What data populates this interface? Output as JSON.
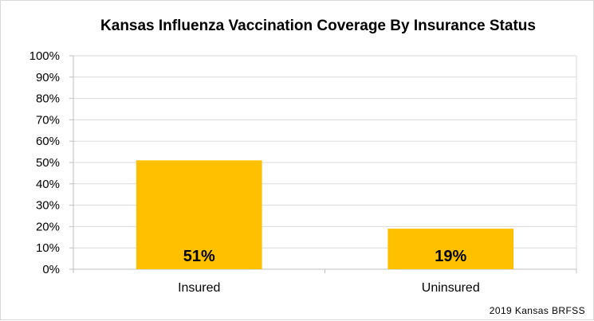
{
  "chart_data": {
    "type": "bar",
    "title": "Kansas Influenza Vaccination Coverage By Insurance Status",
    "categories": [
      "Insured",
      "Uninsured"
    ],
    "values": [
      51,
      19
    ],
    "data_labels": [
      "51%",
      "19%"
    ],
    "ylim": [
      0,
      100
    ],
    "y_ticks": [
      "0%",
      "10%",
      "20%",
      "30%",
      "40%",
      "50%",
      "60%",
      "70%",
      "80%",
      "90%",
      "100%"
    ],
    "xlabel": "",
    "ylabel": "",
    "grid": true,
    "legend": "none",
    "bar_color": "#FFC000",
    "grid_color": "#d9d9d9",
    "source": "2019  Kansas  BRFSS"
  }
}
